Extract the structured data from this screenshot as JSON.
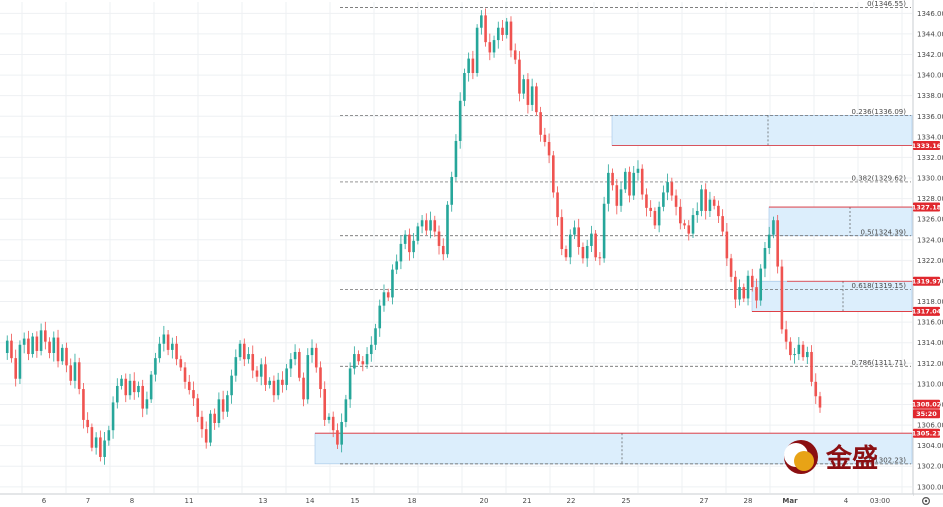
{
  "chart_data": {
    "type": "candlestick",
    "instrument_hint": "gold",
    "ylim": [
      1300,
      1348
    ],
    "y_ticks": [
      1346,
      1344,
      1342,
      1340,
      1338,
      1336,
      1334,
      1332,
      1330,
      1328,
      1326,
      1324,
      1322,
      1320,
      1318,
      1316,
      1314,
      1312,
      1310,
      1308,
      1306,
      1304,
      1302,
      1300
    ],
    "y_tick_labels": [
      "1346.00",
      "1344.00",
      "1342.00",
      "1340.00",
      "1338.00",
      "1336.00",
      "1334.00",
      "1332.00",
      "1330.00",
      "1328.00",
      "1326.00",
      "1324.00",
      "1322.00",
      "1320.00",
      "1318.00",
      "1316.00",
      "1314.00",
      "1312.00",
      "1310.00",
      "1308.00",
      "1306.00",
      "1304.00",
      "1302.00",
      "1300.00"
    ],
    "x_tick_labels": [
      "6",
      "7",
      "8",
      "11",
      "13",
      "14",
      "15",
      "18",
      "20",
      "21",
      "22",
      "25",
      "27",
      "28",
      "Mar",
      "4",
      "03:00"
    ],
    "fibonacci": [
      {
        "label": "0(1346.55)",
        "price": 1346.55
      },
      {
        "label": "0.236(1336.09)",
        "price": 1336.09
      },
      {
        "label": "0.382(1329.62)",
        "price": 1329.62
      },
      {
        "label": "0.5(1324.39)",
        "price": 1324.39
      },
      {
        "label": "0.618(1319.15)",
        "price": 1319.15
      },
      {
        "label": "0.786(1311.71)",
        "price": 1311.71
      },
      {
        "label": "1(1302.23)",
        "price": 1302.23
      }
    ],
    "price_badges": [
      {
        "text": "1333.16",
        "price": 1333.16,
        "color": "#e0282e"
      },
      {
        "text": "1327.18",
        "price": 1327.18,
        "color": "#e0282e"
      },
      {
        "text": "1319.97",
        "price": 1319.97,
        "color": "#e0282e"
      },
      {
        "text": "1317.04",
        "price": 1317.04,
        "color": "#e0282e"
      },
      {
        "text": "1308.02",
        "price": 1308.02,
        "color": "#e0282e"
      },
      {
        "text": "35:20",
        "price": 1307.1,
        "color": "#e0282e"
      },
      {
        "text": "1305.21",
        "price": 1305.21,
        "color": "#e0282e"
      }
    ],
    "zones": [
      {
        "top": 1336.09,
        "bottom": 1333.16
      },
      {
        "top": 1327.18,
        "bottom": 1324.39
      },
      {
        "top": 1319.97,
        "bottom": 1317.04
      },
      {
        "top": 1305.21,
        "bottom": 1302.23
      }
    ],
    "colors": {
      "up": "#26a69a",
      "down": "#ef5350",
      "zone_fill": "#dceefc",
      "zone_edge": "#e0282e",
      "fib_line": "#555555"
    },
    "price_path": [
      1313,
      1314.2,
      1312.5,
      1310.5,
      1313.8,
      1314.4,
      1312.9,
      1314.6,
      1313.2,
      1315.2,
      1314.1,
      1313,
      1314.5,
      1312.2,
      1313.5,
      1311.8,
      1310.3,
      1312.1,
      1309.5,
      1306.5,
      1305.8,
      1303.8,
      1304.8,
      1302.9,
      1304.5,
      1305.5,
      1308.2,
      1309.8,
      1310.5,
      1308.9,
      1310.3,
      1309.2,
      1309.8,
      1307.6,
      1308.5,
      1310.9,
      1312.5,
      1313.9,
      1314.8,
      1313.3,
      1313.9,
      1312.4,
      1311.6,
      1310.2,
      1309.4,
      1308.6,
      1306.8,
      1305.6,
      1304.3,
      1307.1,
      1306.2,
      1308.5,
      1307.3,
      1308.9,
      1310.8,
      1312.6,
      1313.9,
      1312.4,
      1312.9,
      1311.3,
      1310.7,
      1311.9,
      1309.9,
      1310.3,
      1308.9,
      1310.4,
      1309.9,
      1311.5,
      1312.4,
      1313.1,
      1310.6,
      1308.5,
      1312.8,
      1313.5,
      1311.6,
      1309.5,
      1306.5,
      1306.8,
      1305.5,
      1304.1,
      1306.3,
      1308.5,
      1311.5,
      1312.9,
      1312.2,
      1311.9,
      1312.9,
      1313.8,
      1315.4,
      1317.6,
      1318.9,
      1318.4,
      1321.1,
      1321.9,
      1323.6,
      1324.5,
      1322.8,
      1323.9,
      1325.3,
      1325.9,
      1324.9,
      1325.9,
      1324.8,
      1323.4,
      1322.6,
      1327.4,
      1330.1,
      1333.6,
      1337.5,
      1340.2,
      1341.6,
      1340.2,
      1344.6,
      1345.8,
      1343.2,
      1342.2,
      1343.4,
      1344.6,
      1343.9,
      1345.2,
      1342.4,
      1341.5,
      1338.2,
      1339.6,
      1337.1,
      1338.9,
      1336.4,
      1334.2,
      1333.5,
      1332.2,
      1328.6,
      1326.2,
      1323.1,
      1322.3,
      1324.5,
      1325.2,
      1323.3,
      1322.2,
      1323.4,
      1324.6,
      1322.3,
      1322.2,
      1327.5,
      1330.5,
      1329.3,
      1327.3,
      1328.9,
      1330.6,
      1328.3,
      1330.5,
      1330.9,
      1328.4,
      1327.1,
      1326.8,
      1325.4,
      1327.2,
      1328.6,
      1329.6,
      1328.3,
      1327.2,
      1325.6,
      1325.4,
      1324.6,
      1326.4,
      1326.8,
      1328.9,
      1326.8,
      1327.9,
      1327.3,
      1326.3,
      1324.8,
      1322.2,
      1320.4,
      1318.2,
      1319.4,
      1318.3,
      1320.5,
      1319.4,
      1318.1,
      1321.2,
      1323.2,
      1324.5,
      1325.9,
      1321.4,
      1315.3,
      1314.1,
      1312.8,
      1312.9,
      1313.8,
      1312.6,
      1313.1,
      1310.2,
      1308.8,
      1307.7
    ]
  },
  "logo": {
    "text": "金盛"
  }
}
